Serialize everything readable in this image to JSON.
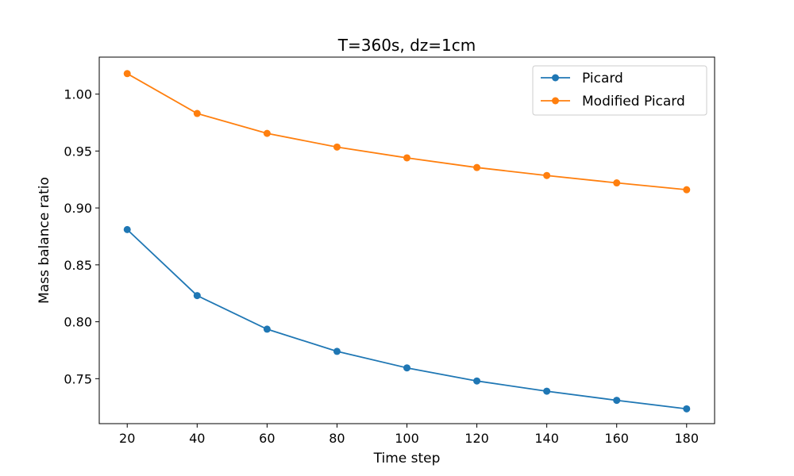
{
  "chart_data": {
    "type": "line",
    "title": "T=360s, dz=1cm",
    "xlabel": "Time step",
    "ylabel": "Mass balance ratio",
    "x": [
      20,
      40,
      60,
      80,
      100,
      120,
      140,
      160,
      180
    ],
    "xlim": [
      12,
      188
    ],
    "ylim": [
      0.7105,
      1.0325
    ],
    "xticks": [
      20,
      40,
      60,
      80,
      100,
      120,
      140,
      160,
      180
    ],
    "yticks": [
      0.75,
      0.8,
      0.85,
      0.9,
      0.95,
      1.0
    ],
    "ytick_labels": [
      "0.75",
      "0.80",
      "0.85",
      "0.90",
      "0.95",
      "1.00"
    ],
    "grid": false,
    "legend_position": "top-right",
    "series": [
      {
        "name": "Picard",
        "color": "#1f77b4",
        "marker": "circle",
        "values": [
          0.881,
          0.823,
          0.7935,
          0.774,
          0.7595,
          0.748,
          0.739,
          0.731,
          0.7235
        ]
      },
      {
        "name": "Modified Picard",
        "color": "#ff7f0e",
        "marker": "circle",
        "values": [
          1.018,
          0.983,
          0.9655,
          0.9535,
          0.944,
          0.9355,
          0.9285,
          0.922,
          0.916
        ]
      }
    ]
  }
}
